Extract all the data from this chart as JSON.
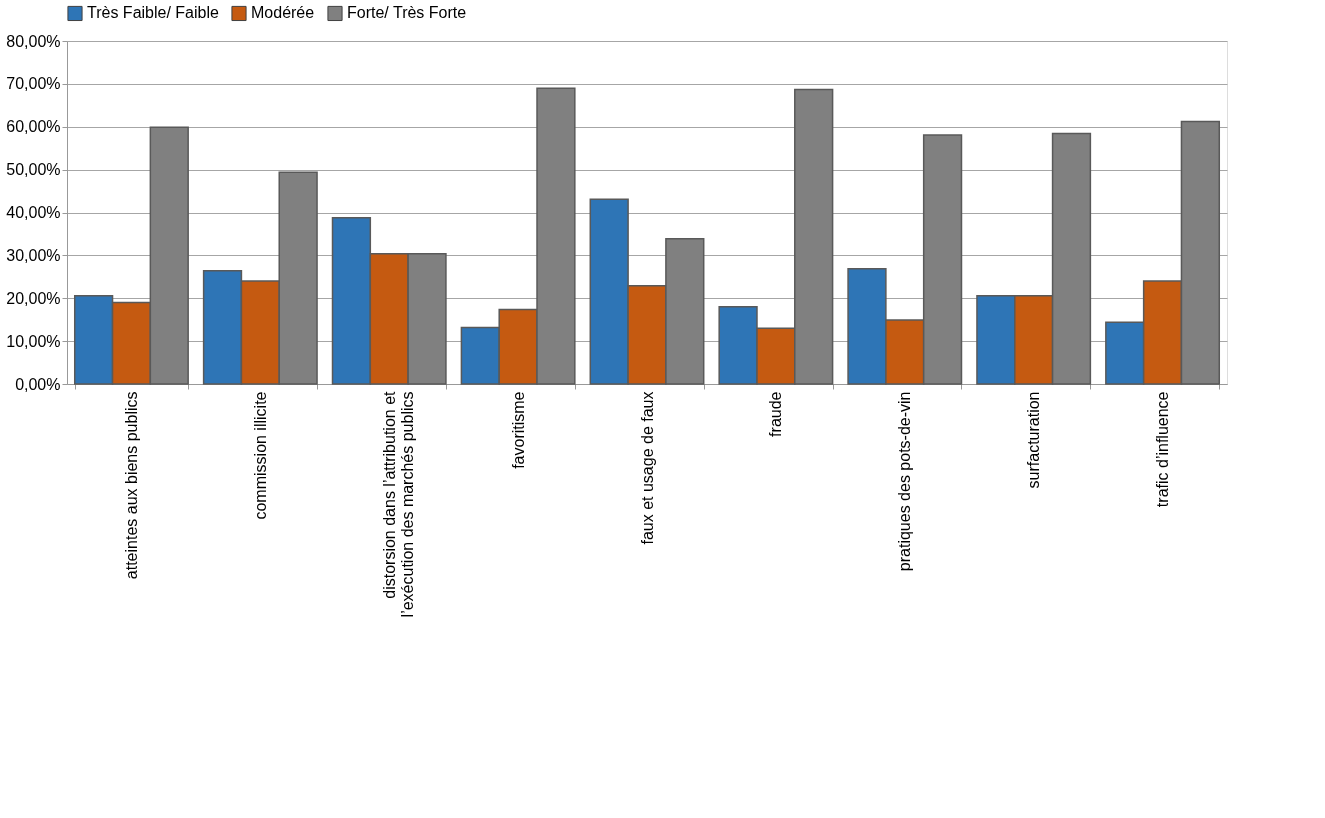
{
  "chart_data": {
    "type": "bar",
    "categories": [
      "atteintes aux biens publics",
      "commission illicite",
      "distorsion dans l’attribution et l’exécution des marchés publics",
      "favoritisme",
      "faux et usage de faux",
      "fraude",
      "pratiques des pots-de-vin",
      "surfacturation",
      "trafic d’influence"
    ],
    "series": [
      {
        "name": "Très Faible/ Faible",
        "color": "#2e75b6",
        "values": [
          20.6,
          26.4,
          38.8,
          13.2,
          43.1,
          18.0,
          26.9,
          20.6,
          14.4
        ]
      },
      {
        "name": "Modérée",
        "color": "#c55a11",
        "values": [
          19.0,
          24.0,
          30.4,
          17.4,
          22.9,
          13.0,
          14.9,
          20.6,
          24.0
        ]
      },
      {
        "name": "Forte/ Très Forte",
        "color": "#808080",
        "values": [
          59.9,
          49.4,
          30.4,
          69.0,
          33.9,
          68.7,
          58.1,
          58.4,
          61.2
        ]
      }
    ],
    "ylim": [
      0,
      80
    ],
    "yticks": [
      {
        "value": 0,
        "label": "0,00%"
      },
      {
        "value": 10,
        "label": "10,00%"
      },
      {
        "value": 20,
        "label": "20,00%"
      },
      {
        "value": 30,
        "label": "30,00%"
      },
      {
        "value": 40,
        "label": "40,00%"
      },
      {
        "value": 50,
        "label": "50,00%"
      },
      {
        "value": 60,
        "label": "60,00%"
      },
      {
        "value": 70,
        "label": "70,00%"
      },
      {
        "value": 80,
        "label": "80,00%"
      }
    ],
    "grid": "y",
    "legend": "top"
  }
}
